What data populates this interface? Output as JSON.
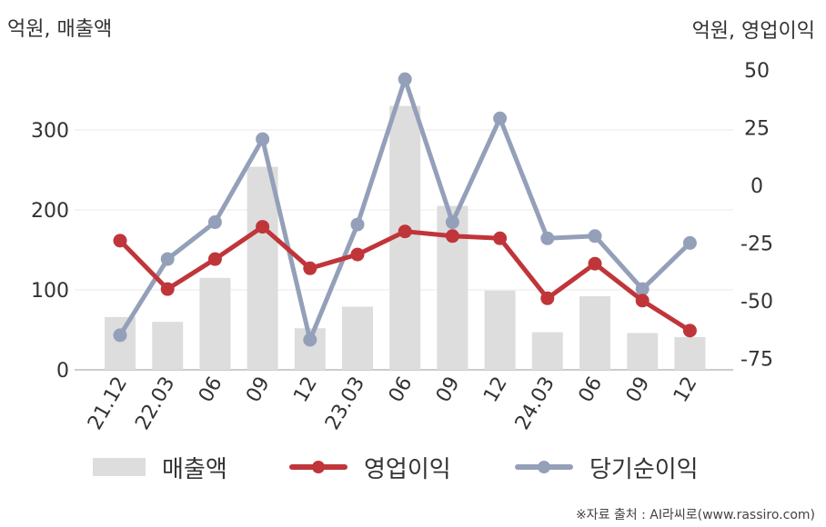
{
  "titles": {
    "left_axis": "억원, 매출액",
    "right_axis": "억원, 영업이익"
  },
  "source": "※자료 출처 : AI라씨로(www.rassiro.com)",
  "colors": {
    "revenue": "#dddddd",
    "operating_profit": "#c0353a",
    "net_income": "#94a0b9"
  },
  "chart_data": {
    "type": "bar",
    "categories": [
      "21.12",
      "22.03",
      "06",
      "09",
      "12",
      "23.03",
      "06",
      "09",
      "12",
      "24.03",
      "06",
      "09",
      "12"
    ],
    "series": [
      {
        "name": "매출액",
        "type": "bar",
        "axis": "left",
        "values": [
          66,
          60,
          115,
          254,
          52,
          79,
          330,
          205,
          99,
          47,
          92,
          46,
          41
        ]
      },
      {
        "name": "영업이익",
        "type": "line",
        "axis": "right",
        "values": [
          -24,
          -45,
          -32,
          -18,
          -36,
          -30,
          -20,
          -22,
          -23,
          -49,
          -34,
          -50,
          -63
        ]
      },
      {
        "name": "당기순이익",
        "type": "line",
        "axis": "right",
        "values": [
          -65,
          -32,
          -16,
          20,
          -67,
          -17,
          46,
          -16,
          29,
          -23,
          -22,
          -45,
          -25
        ]
      }
    ],
    "left_axis": {
      "min": 0,
      "max": 375,
      "ticks": [
        0,
        100,
        200,
        300
      ]
    },
    "right_axis": {
      "min": -80,
      "max": 50,
      "ticks": [
        50,
        25,
        0,
        -25,
        -50,
        -75
      ]
    },
    "grid": true,
    "legend": "bottom"
  }
}
